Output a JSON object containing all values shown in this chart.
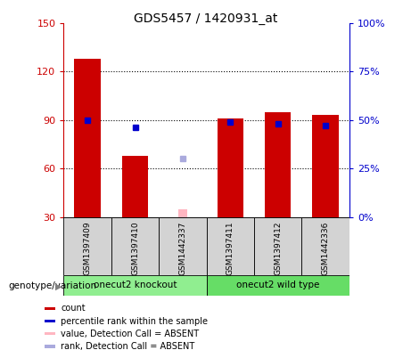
{
  "title": "GDS5457 / 1420931_at",
  "samples": [
    "GSM1397409",
    "GSM1397410",
    "GSM1442337",
    "GSM1397411",
    "GSM1397412",
    "GSM1442336"
  ],
  "red_values": [
    128,
    68,
    null,
    91,
    95,
    93
  ],
  "blue_values": [
    50,
    46,
    null,
    49,
    48,
    47
  ],
  "pink_value": 35,
  "lightblue_value": 30,
  "absent_sample_index": 2,
  "ylim_left": [
    30,
    150
  ],
  "ylim_right": [
    0,
    100
  ],
  "yticks_left": [
    30,
    60,
    90,
    120,
    150
  ],
  "yticks_right": [
    0,
    25,
    50,
    75,
    100
  ],
  "bar_width": 0.55,
  "marker_size": 5,
  "left_axis_color": "#CC0000",
  "right_axis_color": "#0000CC",
  "sample_bg_color": "#D3D3D3",
  "group1_color": "#90EE90",
  "group2_color": "#66DD66",
  "group_label": "genotype/variation",
  "group1_label": "onecut2 knockout",
  "group2_label": "onecut2 wild type",
  "legend_labels": [
    "count",
    "percentile rank within the sample",
    "value, Detection Call = ABSENT",
    "rank, Detection Call = ABSENT"
  ],
  "legend_colors": [
    "#CC0000",
    "#0000CC",
    "#FFB6C1",
    "#AAAADD"
  ]
}
